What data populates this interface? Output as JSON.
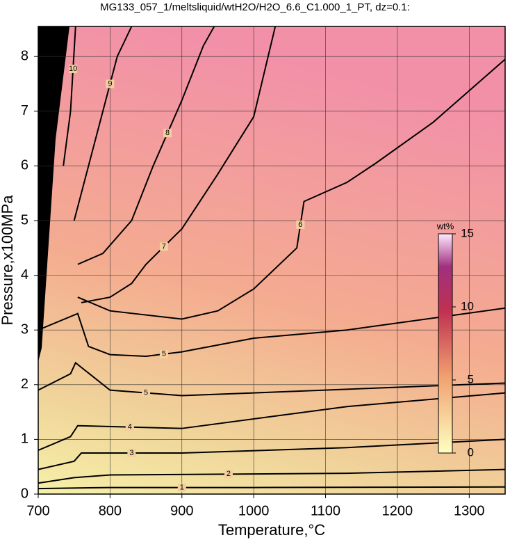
{
  "chart_data": {
    "type": "contour",
    "title": "MG133_057_1/meltsliquid/wtH2O/H2O_6.6_C1.000_1_PT, dz=0.1:",
    "xlabel": "Temperature,°C",
    "ylabel": "Pressure,x100MPa",
    "xlim": [
      700,
      1350
    ],
    "ylim": [
      0,
      8.55
    ],
    "xticks": [
      700,
      800,
      900,
      1000,
      1100,
      1200,
      1300
    ],
    "yticks": [
      0,
      1,
      2,
      3,
      4,
      5,
      6,
      7,
      8
    ],
    "grid": true,
    "colorbar": {
      "label": "wt%",
      "clim": [
        0,
        15
      ],
      "ticks": [
        0,
        5,
        10,
        15
      ]
    },
    "contours": [
      {
        "level": 1,
        "x": [
          700,
          800,
          1000,
          1350
        ],
        "y": [
          0.1,
          0.12,
          0.12,
          0.13
        ]
      },
      {
        "level": 2,
        "x": [
          700,
          750,
          800,
          1130,
          1350
        ],
        "y": [
          0.2,
          0.3,
          0.35,
          0.38,
          0.45
        ]
      },
      {
        "level": 3,
        "x": [
          700,
          750,
          760,
          900,
          1130,
          1350
        ],
        "y": [
          0.45,
          0.6,
          0.75,
          0.75,
          0.85,
          1.0
        ]
      },
      {
        "level": 4,
        "x": [
          700,
          745,
          755,
          900,
          1130,
          1350
        ],
        "y": [
          0.8,
          1.05,
          1.25,
          1.2,
          1.6,
          1.85
        ]
      },
      {
        "level": 5,
        "x": [
          700,
          745,
          752,
          800,
          900,
          1000,
          1350
        ],
        "y": [
          1.9,
          2.2,
          2.4,
          1.9,
          1.8,
          1.85,
          2.03
        ]
      },
      {
        "level": 5,
        "x": [
          700,
          755,
          770,
          800,
          850,
          900,
          1000,
          1130,
          1350
        ],
        "y": [
          3.0,
          3.3,
          2.7,
          2.55,
          2.52,
          2.6,
          2.85,
          3.0,
          3.4
        ]
      },
      {
        "level": 6,
        "x": [
          755,
          800,
          900,
          950,
          1000,
          1060,
          1070,
          1130,
          1170,
          1250,
          1350
        ],
        "y": [
          3.6,
          3.35,
          3.2,
          3.35,
          3.75,
          4.5,
          5.35,
          5.7,
          6.05,
          6.8,
          7.95
        ]
      },
      {
        "level": 7,
        "x": [
          760,
          800,
          830,
          850,
          900,
          950,
          1000,
          1030
        ],
        "y": [
          3.5,
          3.6,
          3.85,
          4.2,
          4.85,
          5.85,
          6.9,
          8.55
        ]
      },
      {
        "level": 8,
        "x": [
          755,
          790,
          830,
          860,
          900,
          930,
          945
        ],
        "y": [
          4.2,
          4.4,
          5.0,
          6.0,
          7.2,
          8.2,
          8.55
        ]
      },
      {
        "level": 9,
        "x": [
          750,
          760,
          790,
          810,
          830
        ],
        "y": [
          5.0,
          5.5,
          7.0,
          8.0,
          8.55
        ]
      },
      {
        "level": 10,
        "x": [
          735,
          745,
          752
        ],
        "y": [
          6.0,
          7.0,
          8.55
        ]
      }
    ]
  }
}
